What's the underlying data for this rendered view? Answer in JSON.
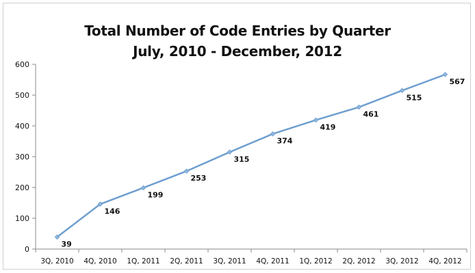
{
  "chart_data": {
    "type": "line",
    "title": "Total Number of Code Entries by Quarter",
    "subtitle": "July, 2010 - December, 2012",
    "xlabel": "",
    "ylabel": "",
    "categories": [
      "3Q, 2010",
      "4Q, 2010",
      "1Q, 2011",
      "2Q, 2011",
      "3Q, 2011",
      "4Q, 2011",
      "1Q, 2012",
      "2Q, 2012",
      "3Q, 2012",
      "4Q, 2012"
    ],
    "series": [
      {
        "values": [
          39,
          146,
          199,
          253,
          315,
          374,
          419,
          461,
          515,
          567
        ]
      }
    ],
    "ylim": [
      0,
      600
    ],
    "yticks": [
      0,
      100,
      200,
      300,
      400,
      500,
      600
    ],
    "grid": false,
    "legend": "none",
    "line_color": "#6f9fd0",
    "marker_color": "#8fb6de"
  }
}
